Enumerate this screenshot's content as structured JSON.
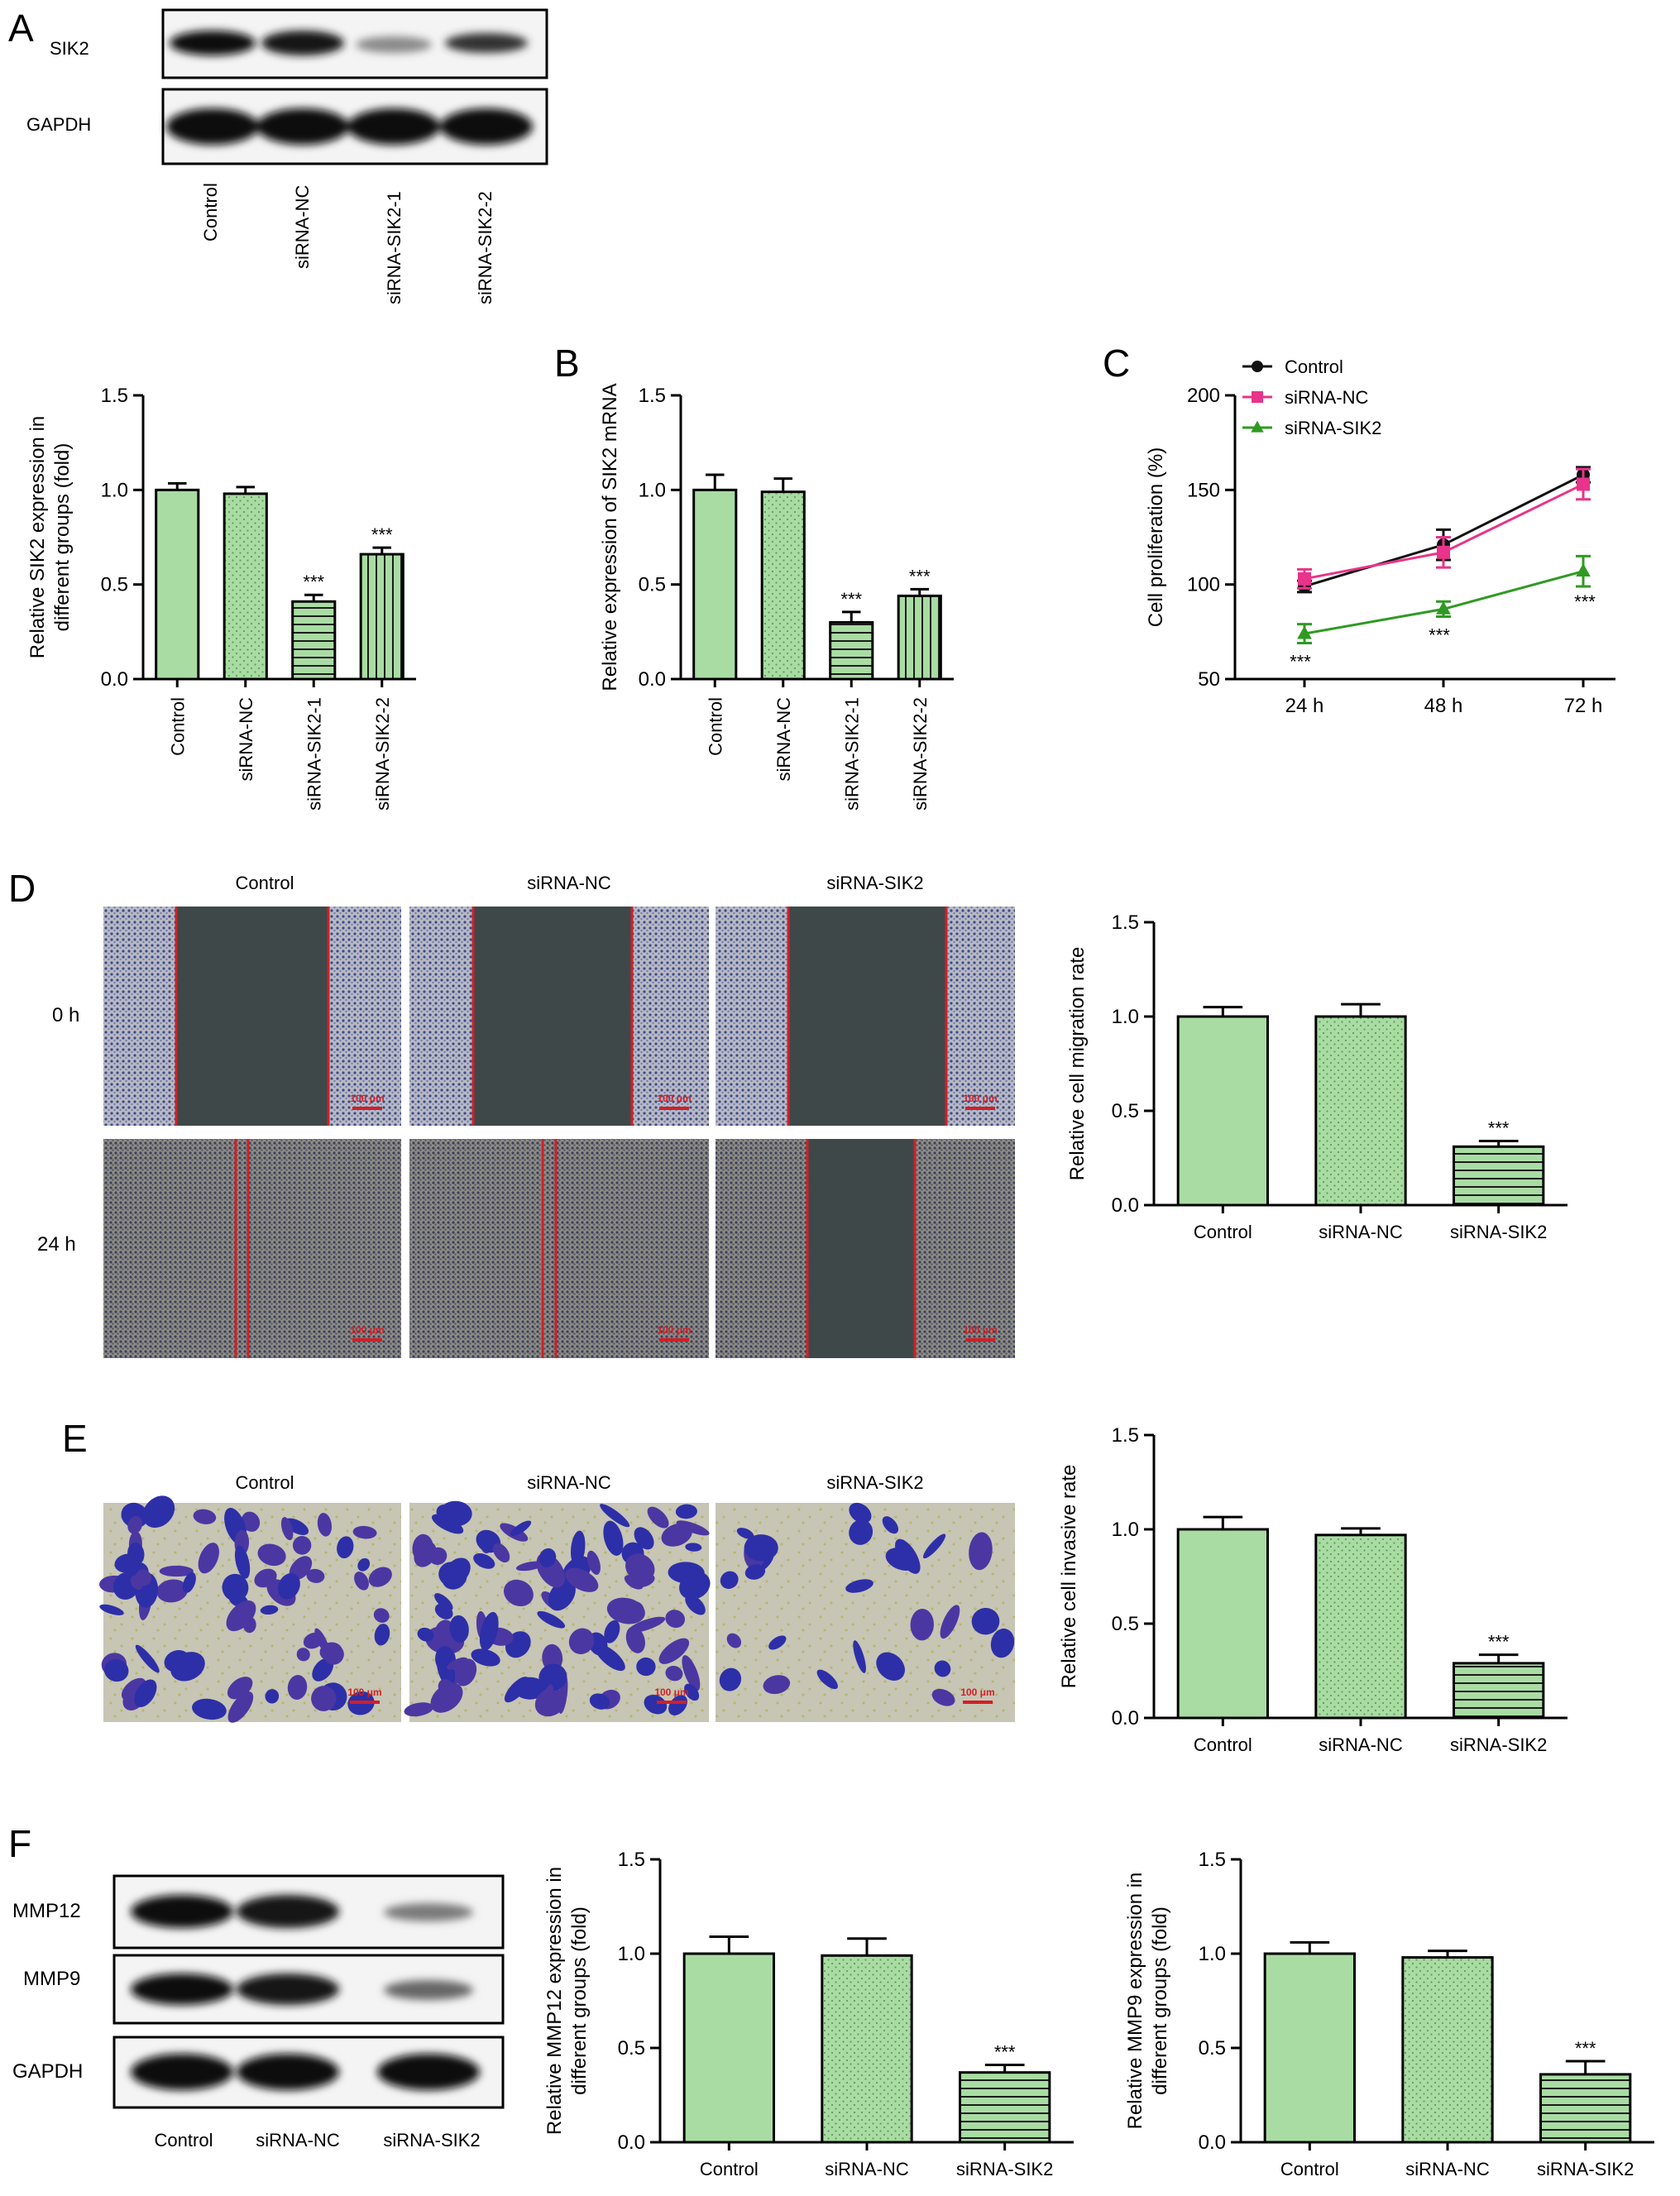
{
  "panels": {
    "A": {
      "letter": "A"
    },
    "B": {
      "letter": "B"
    },
    "C": {
      "letter": "C"
    },
    "D": {
      "letter": "D"
    },
    "E": {
      "letter": "E"
    },
    "F": {
      "letter": "F"
    }
  },
  "colors": {
    "bar_fill": "#a9dca3",
    "control_line": "#111111",
    "sirna_nc_line": "#e8348a",
    "sirna_sik2_line": "#2f9a22",
    "scale_bar": "#d21f26"
  },
  "blot_a": {
    "rows": [
      "SIK2",
      "GAPDH"
    ],
    "lanes": [
      "Control",
      "siRNA-NC",
      "siRNA-SIK2-1",
      "siRNA-SIK2-2"
    ]
  },
  "wound": {
    "columns": [
      "Control",
      "siRNA-NC",
      "siRNA-SIK2"
    ],
    "rows": [
      "0 h",
      "24 h"
    ],
    "scale_bar": "100 μm"
  },
  "invasion": {
    "columns": [
      "Control",
      "siRNA-NC",
      "siRNA-SIK2"
    ],
    "scale_bar": "100 μm"
  },
  "blot_f": {
    "rows": [
      "MMP12",
      "MMP9",
      "GAPDH"
    ],
    "lanes": [
      "Control",
      "siRNA-NC",
      "siRNA-SIK2"
    ]
  },
  "chart_data": [
    {
      "id": "A",
      "type": "bar",
      "ylabel": "Relative SIK2 expression in different groups (fold)",
      "ylabel_lines": [
        "Relative SIK2 expression in",
        "different groups (fold)"
      ],
      "categories": [
        "Control",
        "siRNA-NC",
        "siRNA-SIK2-1",
        "siRNA-SIK2-2"
      ],
      "values": [
        1.0,
        0.98,
        0.41,
        0.66
      ],
      "errors": [
        0.035,
        0.035,
        0.035,
        0.035
      ],
      "patterns": [
        "solid",
        "dots",
        "hlines",
        "vlines"
      ],
      "significance": [
        "",
        "",
        "***",
        "***"
      ],
      "ylim": [
        0,
        1.5
      ],
      "yticks": [
        "0.0",
        "0.5",
        "1.0",
        "1.5"
      ],
      "tick_label_rotation": "vertical"
    },
    {
      "id": "B",
      "type": "bar",
      "ylabel": "Relative expression of SIK2 mRNA",
      "categories": [
        "Control",
        "siRNA-NC",
        "siRNA-SIK2-1",
        "siRNA-SIK2-2"
      ],
      "values": [
        1.0,
        0.99,
        0.3,
        0.44
      ],
      "errors": [
        0.08,
        0.07,
        0.055,
        0.035
      ],
      "patterns": [
        "solid",
        "dots",
        "hlines",
        "vlines"
      ],
      "significance": [
        "",
        "",
        "***",
        "***"
      ],
      "ylim": [
        0,
        1.5
      ],
      "yticks": [
        "0.0",
        "0.5",
        "1.0",
        "1.5"
      ],
      "tick_label_rotation": "vertical"
    },
    {
      "id": "C",
      "type": "line",
      "ylabel": "Cell proliferation (%)",
      "x": [
        "24 h",
        "48 h",
        "72 h"
      ],
      "series": [
        {
          "name": "Control",
          "values": [
            99,
            121,
            158
          ],
          "errors": [
            3,
            8,
            4
          ],
          "marker": "circle"
        },
        {
          "name": "siRNA-NC",
          "values": [
            103,
            117,
            153
          ],
          "errors": [
            5,
            8,
            8
          ],
          "marker": "square"
        },
        {
          "name": "siRNA-SIK2",
          "values": [
            74,
            87,
            107
          ],
          "errors": [
            5,
            4,
            8
          ],
          "marker": "triangle"
        }
      ],
      "significance": [
        "***",
        "***",
        "***"
      ],
      "ylim": [
        50,
        200
      ],
      "yticks": [
        "50",
        "100",
        "150",
        "200"
      ],
      "legend": "top-left"
    },
    {
      "id": "D",
      "type": "bar",
      "ylabel": "Relative cell migration rate",
      "categories": [
        "Control",
        "siRNA-NC",
        "siRNA-SIK2"
      ],
      "values": [
        1.0,
        1.0,
        0.31
      ],
      "errors": [
        0.05,
        0.065,
        0.03
      ],
      "patterns": [
        "solid",
        "dots",
        "hlines"
      ],
      "significance": [
        "",
        "",
        "***"
      ],
      "ylim": [
        0,
        1.5
      ],
      "yticks": [
        "0.0",
        "0.5",
        "1.0",
        "1.5"
      ],
      "tick_label_rotation": "horizontal"
    },
    {
      "id": "E",
      "type": "bar",
      "ylabel": "Relative cell invasive rate",
      "categories": [
        "Control",
        "siRNA-NC",
        "siRNA-SIK2"
      ],
      "values": [
        1.0,
        0.97,
        0.29
      ],
      "errors": [
        0.065,
        0.035,
        0.045
      ],
      "patterns": [
        "solid",
        "dots",
        "hlines"
      ],
      "significance": [
        "",
        "",
        "***"
      ],
      "ylim": [
        0,
        1.5
      ],
      "yticks": [
        "0.0",
        "0.5",
        "1.0",
        "1.5"
      ],
      "tick_label_rotation": "horizontal"
    },
    {
      "id": "F1",
      "type": "bar",
      "ylabel": "Relative MMP12 expression in different groups (fold)",
      "ylabel_lines": [
        "Relative MMP12 expression in",
        "different groups (fold)"
      ],
      "categories": [
        "Control",
        "siRNA-NC",
        "siRNA-SIK2"
      ],
      "values": [
        1.0,
        0.99,
        0.37
      ],
      "errors": [
        0.09,
        0.09,
        0.04
      ],
      "patterns": [
        "solid",
        "dots",
        "hlines"
      ],
      "significance": [
        "",
        "",
        "***"
      ],
      "ylim": [
        0,
        1.5
      ],
      "yticks": [
        "0.0",
        "0.5",
        "1.0",
        "1.5"
      ],
      "tick_label_rotation": "horizontal"
    },
    {
      "id": "F2",
      "type": "bar",
      "ylabel": "Relative MMP9 expression in different groups (fold)",
      "ylabel_lines": [
        "Relative MMP9 expression in",
        "different groups (fold)"
      ],
      "categories": [
        "Control",
        "siRNA-NC",
        "siRNA-SIK2"
      ],
      "values": [
        1.0,
        0.98,
        0.36
      ],
      "errors": [
        0.06,
        0.035,
        0.07
      ],
      "patterns": [
        "solid",
        "dots",
        "hlines"
      ],
      "significance": [
        "",
        "",
        "***"
      ],
      "ylim": [
        0,
        1.5
      ],
      "yticks": [
        "0.0",
        "0.5",
        "1.0",
        "1.5"
      ],
      "tick_label_rotation": "horizontal"
    }
  ]
}
